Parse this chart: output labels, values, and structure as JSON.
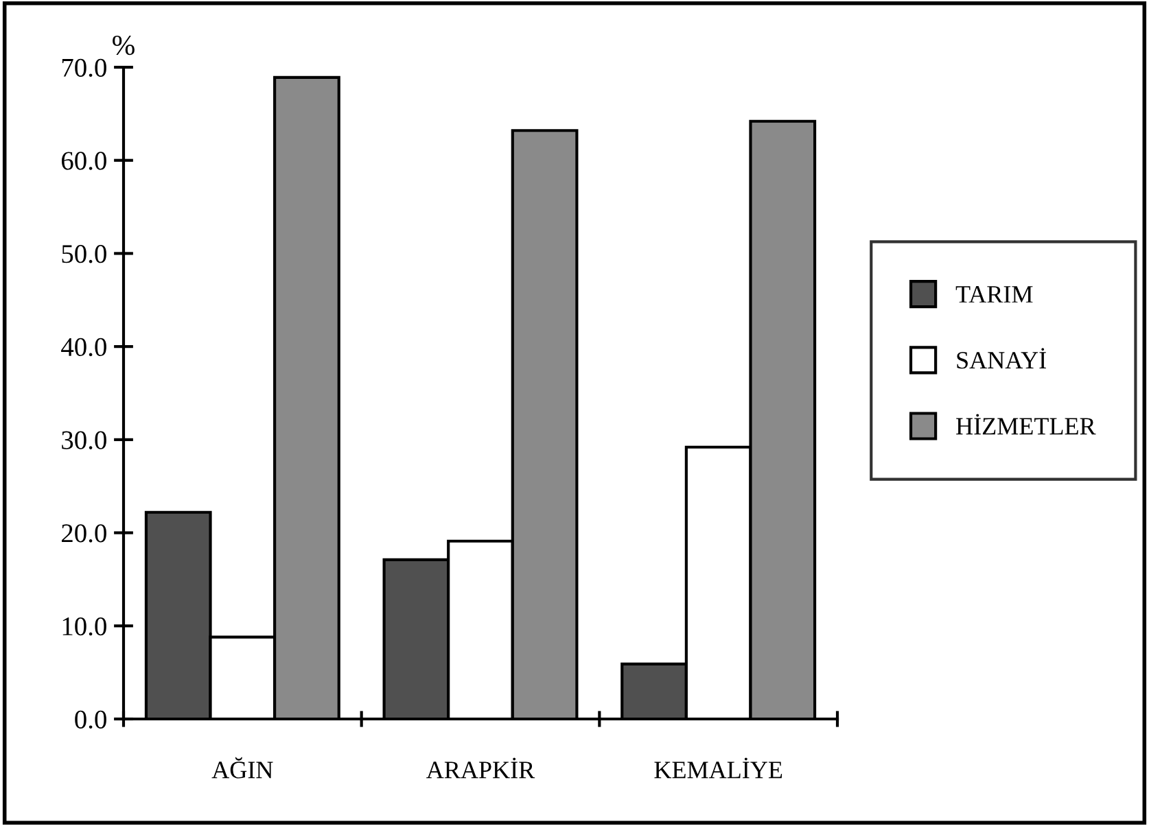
{
  "chart_data": {
    "type": "bar",
    "ylabel": "%",
    "categories": [
      "AĞIN",
      "ARAPKİR",
      "KEMALİYE"
    ],
    "series": [
      {
        "name": "TARIM",
        "color": "#505050",
        "values": [
          22.2,
          17.1,
          5.9
        ]
      },
      {
        "name": "SANAYİ",
        "color": "#ffffff",
        "values": [
          8.8,
          19.1,
          29.2
        ]
      },
      {
        "name": "HİZMETLER",
        "color": "#8a8a8a",
        "values": [
          68.9,
          63.2,
          64.2
        ]
      }
    ],
    "ylim": [
      0,
      70
    ],
    "yticks": [
      {
        "value": 0,
        "label": "0.0"
      },
      {
        "value": 10,
        "label": "10.0"
      },
      {
        "value": 20,
        "label": "20.0"
      },
      {
        "value": 30,
        "label": "30.0"
      },
      {
        "value": 40,
        "label": "40.0"
      },
      {
        "value": 50,
        "label": "50.0"
      },
      {
        "value": 60,
        "label": "60.0"
      },
      {
        "value": 70,
        "label": "70.0"
      }
    ],
    "grid": false,
    "legend": "right"
  }
}
